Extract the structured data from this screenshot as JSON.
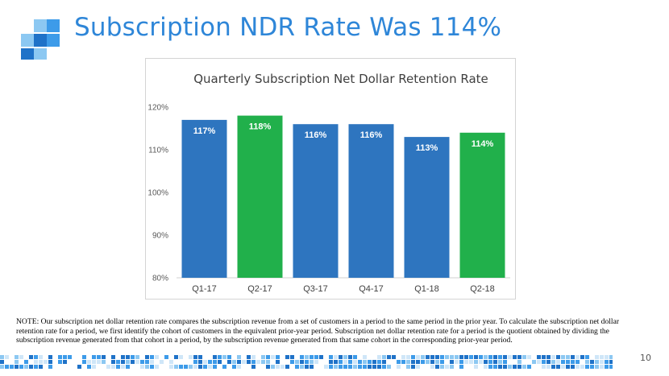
{
  "slide": {
    "title": "Subscription NDR Rate Was 114%",
    "note": "NOTE: Our subscription net dollar retention rate compares the subscription revenue from a set of customers in a period to the same period in the prior year.  To calculate the subscription net dollar retention rate for a period, we first identify the cohort of customers in the equivalent prior-year period.  Subscription net dollar retention rate for a period is the quotient obtained by dividing the subscription revenue generated from that cohort in a period, by the subscription revenue generated from that same cohort in the corresponding prior-year period.",
    "page_number": "10"
  },
  "colors": {
    "accent": "#2e86d8",
    "bar_blue": "#2e75bf",
    "bar_green": "#21b04b",
    "logo_dark": "#1f72c8",
    "logo_mid": "#3d9be9",
    "logo_light": "#8cc8f2"
  },
  "chart_data": {
    "type": "bar",
    "title": "Quarterly Subscription Net Dollar Retention Rate",
    "categories": [
      "Q1-17",
      "Q2-17",
      "Q3-17",
      "Q4-17",
      "Q1-18",
      "Q2-18"
    ],
    "values": [
      117,
      118,
      116,
      116,
      113,
      114
    ],
    "data_labels": [
      "117%",
      "118%",
      "116%",
      "116%",
      "113%",
      "114%"
    ],
    "bar_colors": [
      "blue",
      "green",
      "blue",
      "blue",
      "blue",
      "green"
    ],
    "ylim": [
      80,
      120
    ],
    "yticks": [
      80,
      90,
      100,
      110,
      120
    ],
    "ytick_labels": [
      "80%",
      "90%",
      "100%",
      "110%",
      "120%"
    ],
    "xlabel": "",
    "ylabel": "",
    "grid": false,
    "legend": "none"
  }
}
